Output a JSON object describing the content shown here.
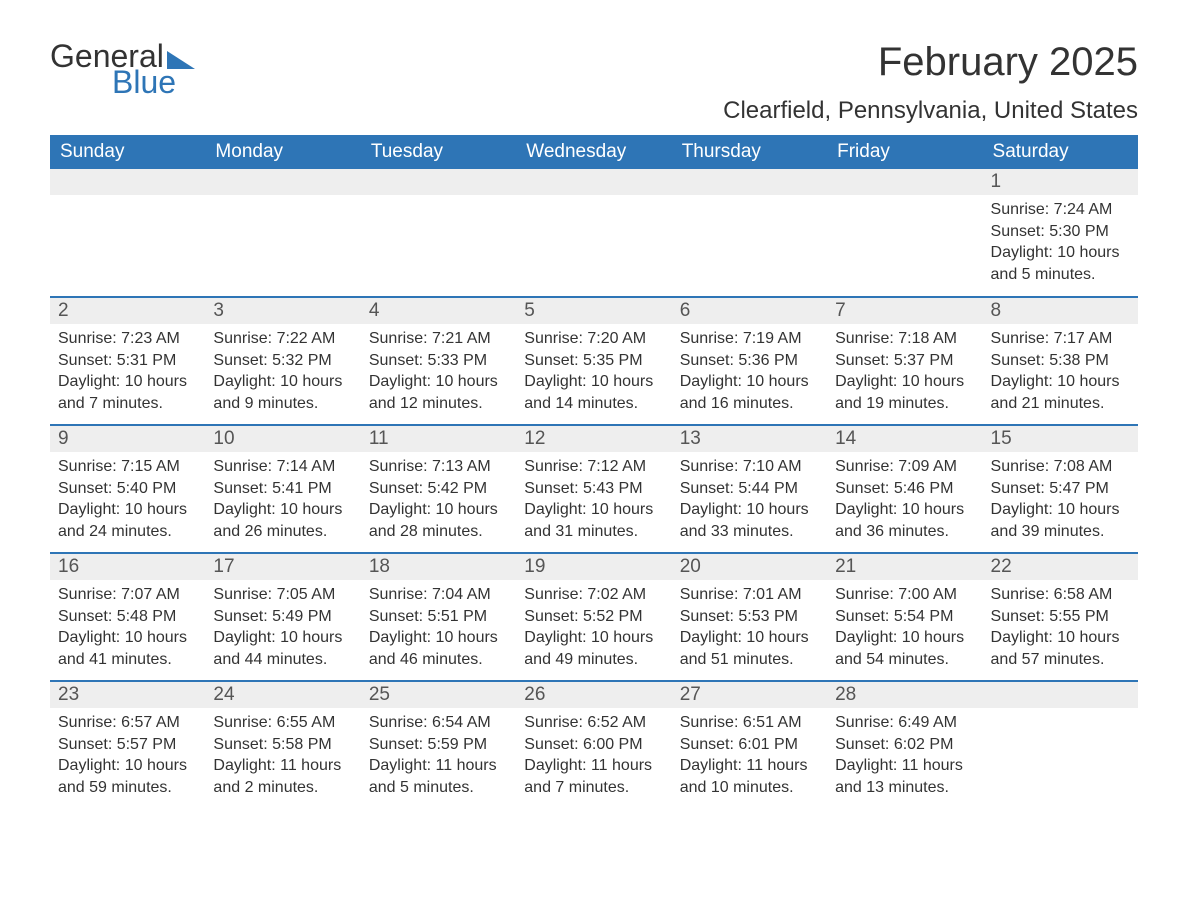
{
  "brand": {
    "word1": "General",
    "word2": "Blue",
    "accent_color": "#2e75b6"
  },
  "title": "February 2025",
  "location": "Clearfield, Pennsylvania, United States",
  "colors": {
    "header_bg": "#2e75b6",
    "header_text": "#ffffff",
    "daynum_bg": "#eeeeee",
    "row_border": "#2e75b6",
    "body_text": "#333333",
    "page_bg": "#ffffff"
  },
  "typography": {
    "title_fontsize": 40,
    "location_fontsize": 24,
    "header_fontsize": 19,
    "body_fontsize": 16
  },
  "weekdays": [
    "Sunday",
    "Monday",
    "Tuesday",
    "Wednesday",
    "Thursday",
    "Friday",
    "Saturday"
  ],
  "layout": {
    "first_day_column_index": 6,
    "rows": 5,
    "cols": 7
  },
  "days": [
    {
      "n": 1,
      "sunrise": "7:24 AM",
      "sunset": "5:30 PM",
      "daylight": "10 hours and 5 minutes."
    },
    {
      "n": 2,
      "sunrise": "7:23 AM",
      "sunset": "5:31 PM",
      "daylight": "10 hours and 7 minutes."
    },
    {
      "n": 3,
      "sunrise": "7:22 AM",
      "sunset": "5:32 PM",
      "daylight": "10 hours and 9 minutes."
    },
    {
      "n": 4,
      "sunrise": "7:21 AM",
      "sunset": "5:33 PM",
      "daylight": "10 hours and 12 minutes."
    },
    {
      "n": 5,
      "sunrise": "7:20 AM",
      "sunset": "5:35 PM",
      "daylight": "10 hours and 14 minutes."
    },
    {
      "n": 6,
      "sunrise": "7:19 AM",
      "sunset": "5:36 PM",
      "daylight": "10 hours and 16 minutes."
    },
    {
      "n": 7,
      "sunrise": "7:18 AM",
      "sunset": "5:37 PM",
      "daylight": "10 hours and 19 minutes."
    },
    {
      "n": 8,
      "sunrise": "7:17 AM",
      "sunset": "5:38 PM",
      "daylight": "10 hours and 21 minutes."
    },
    {
      "n": 9,
      "sunrise": "7:15 AM",
      "sunset": "5:40 PM",
      "daylight": "10 hours and 24 minutes."
    },
    {
      "n": 10,
      "sunrise": "7:14 AM",
      "sunset": "5:41 PM",
      "daylight": "10 hours and 26 minutes."
    },
    {
      "n": 11,
      "sunrise": "7:13 AM",
      "sunset": "5:42 PM",
      "daylight": "10 hours and 28 minutes."
    },
    {
      "n": 12,
      "sunrise": "7:12 AM",
      "sunset": "5:43 PM",
      "daylight": "10 hours and 31 minutes."
    },
    {
      "n": 13,
      "sunrise": "7:10 AM",
      "sunset": "5:44 PM",
      "daylight": "10 hours and 33 minutes."
    },
    {
      "n": 14,
      "sunrise": "7:09 AM",
      "sunset": "5:46 PM",
      "daylight": "10 hours and 36 minutes."
    },
    {
      "n": 15,
      "sunrise": "7:08 AM",
      "sunset": "5:47 PM",
      "daylight": "10 hours and 39 minutes."
    },
    {
      "n": 16,
      "sunrise": "7:07 AM",
      "sunset": "5:48 PM",
      "daylight": "10 hours and 41 minutes."
    },
    {
      "n": 17,
      "sunrise": "7:05 AM",
      "sunset": "5:49 PM",
      "daylight": "10 hours and 44 minutes."
    },
    {
      "n": 18,
      "sunrise": "7:04 AM",
      "sunset": "5:51 PM",
      "daylight": "10 hours and 46 minutes."
    },
    {
      "n": 19,
      "sunrise": "7:02 AM",
      "sunset": "5:52 PM",
      "daylight": "10 hours and 49 minutes."
    },
    {
      "n": 20,
      "sunrise": "7:01 AM",
      "sunset": "5:53 PM",
      "daylight": "10 hours and 51 minutes."
    },
    {
      "n": 21,
      "sunrise": "7:00 AM",
      "sunset": "5:54 PM",
      "daylight": "10 hours and 54 minutes."
    },
    {
      "n": 22,
      "sunrise": "6:58 AM",
      "sunset": "5:55 PM",
      "daylight": "10 hours and 57 minutes."
    },
    {
      "n": 23,
      "sunrise": "6:57 AM",
      "sunset": "5:57 PM",
      "daylight": "10 hours and 59 minutes."
    },
    {
      "n": 24,
      "sunrise": "6:55 AM",
      "sunset": "5:58 PM",
      "daylight": "11 hours and 2 minutes."
    },
    {
      "n": 25,
      "sunrise": "6:54 AM",
      "sunset": "5:59 PM",
      "daylight": "11 hours and 5 minutes."
    },
    {
      "n": 26,
      "sunrise": "6:52 AM",
      "sunset": "6:00 PM",
      "daylight": "11 hours and 7 minutes."
    },
    {
      "n": 27,
      "sunrise": "6:51 AM",
      "sunset": "6:01 PM",
      "daylight": "11 hours and 10 minutes."
    },
    {
      "n": 28,
      "sunrise": "6:49 AM",
      "sunset": "6:02 PM",
      "daylight": "11 hours and 13 minutes."
    }
  ],
  "labels": {
    "sunrise": "Sunrise:",
    "sunset": "Sunset:",
    "daylight": "Daylight:"
  }
}
